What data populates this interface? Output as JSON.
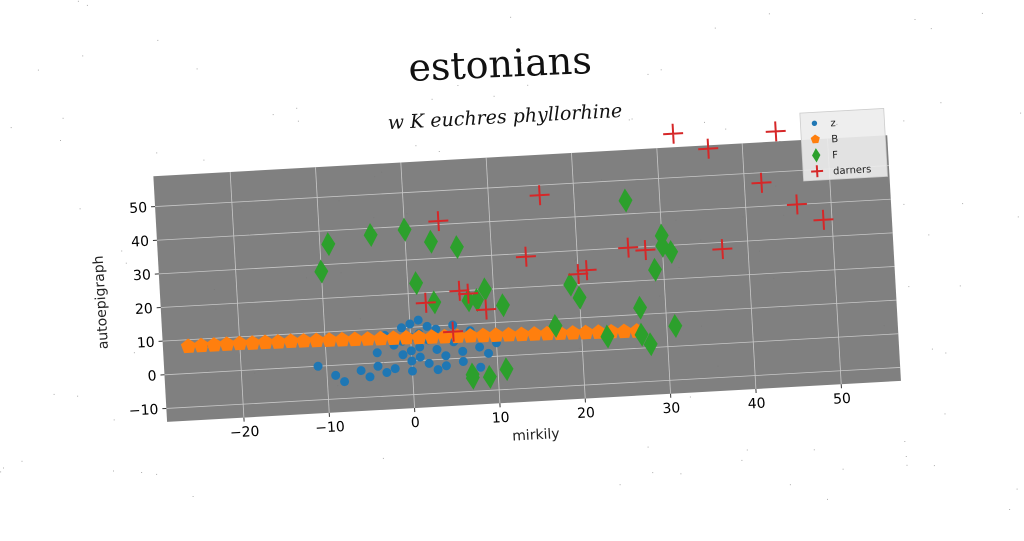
{
  "chart_data": {
    "type": "scatter",
    "title": "estonians",
    "subtitle": "w K euchres phyllorhine",
    "xlabel": "mirkily",
    "ylabel": "autoepigraph",
    "xlim": [
      -29,
      57
    ],
    "ylim": [
      -14,
      59
    ],
    "xticks": [
      -20,
      -10,
      0,
      10,
      20,
      30,
      40,
      50
    ],
    "yticks": [
      -10,
      0,
      10,
      20,
      30,
      40,
      50
    ],
    "grid": true,
    "legend_position": "top-right",
    "background": "#808080",
    "series": [
      {
        "name": "z",
        "color": "#1f77b4",
        "marker": "circle",
        "points": [
          [
            -11,
            0
          ],
          [
            -9,
            -3
          ],
          [
            -8,
            -5
          ],
          [
            -6,
            -2
          ],
          [
            -5,
            -4
          ],
          [
            -4,
            3
          ],
          [
            -4,
            -1
          ],
          [
            -3,
            -3
          ],
          [
            -3,
            8
          ],
          [
            -2,
            5
          ],
          [
            -2,
            -2
          ],
          [
            -1,
            10
          ],
          [
            -1,
            6
          ],
          [
            -1,
            2
          ],
          [
            0,
            11
          ],
          [
            0,
            7
          ],
          [
            0,
            3
          ],
          [
            0,
            0
          ],
          [
            0,
            -3
          ],
          [
            1,
            12
          ],
          [
            1,
            8
          ],
          [
            1,
            4
          ],
          [
            1,
            1
          ],
          [
            2,
            6
          ],
          [
            2,
            -1
          ],
          [
            2,
            10
          ],
          [
            3,
            3
          ],
          [
            3,
            -3
          ],
          [
            3,
            9
          ],
          [
            4,
            1
          ],
          [
            4,
            -2
          ],
          [
            5,
            5
          ],
          [
            5,
            10
          ],
          [
            6,
            2
          ],
          [
            6,
            -1
          ],
          [
            7,
            6
          ],
          [
            7,
            8
          ],
          [
            8,
            3
          ],
          [
            8,
            -3
          ],
          [
            9,
            1
          ],
          [
            10,
            4
          ]
        ]
      },
      {
        "name": "B",
        "color": "#ff7f0e",
        "marker": "pentagon",
        "points": [
          [
            -26,
            8
          ],
          [
            -24.5,
            8
          ],
          [
            -23,
            8
          ],
          [
            -21.5,
            8
          ],
          [
            -20,
            8
          ],
          [
            -18.5,
            7.9
          ],
          [
            -17,
            7.9
          ],
          [
            -15.5,
            7.8
          ],
          [
            -14,
            7.8
          ],
          [
            -12.5,
            7.7
          ],
          [
            -11,
            7.6
          ],
          [
            -9.5,
            7.5
          ],
          [
            -8,
            7.4
          ],
          [
            -6.5,
            7.3
          ],
          [
            -5,
            7.2
          ],
          [
            -3.5,
            7.1
          ],
          [
            -2,
            7
          ],
          [
            -0.5,
            6.9
          ],
          [
            1,
            6.8
          ],
          [
            2.5,
            6.7
          ],
          [
            4,
            6.6
          ],
          [
            5.5,
            6.5
          ],
          [
            7,
            6.4
          ],
          [
            8.5,
            6.3
          ],
          [
            10,
            6.2
          ],
          [
            11.5,
            6.1
          ],
          [
            13,
            6
          ],
          [
            14.5,
            5.9
          ],
          [
            16,
            5.8
          ],
          [
            17.5,
            5.7
          ],
          [
            19,
            5.6
          ],
          [
            20.5,
            5.5
          ],
          [
            22,
            5.4
          ],
          [
            23.5,
            5.3
          ],
          [
            25,
            5.2
          ],
          [
            26.5,
            5.1
          ]
        ]
      },
      {
        "name": "F",
        "color": "#2ca02c",
        "marker": "thin_diamond",
        "points": [
          [
            -10,
            28
          ],
          [
            -9,
            36
          ],
          [
            -4,
            38
          ],
          [
            0,
            39
          ],
          [
            1,
            23
          ],
          [
            3,
            35
          ],
          [
            3,
            17
          ],
          [
            6,
            33
          ],
          [
            7,
            -5
          ],
          [
            7,
            -6
          ],
          [
            7,
            17
          ],
          [
            8,
            17
          ],
          [
            9,
            20
          ],
          [
            9,
            -6
          ],
          [
            11,
            15
          ],
          [
            11,
            -4
          ],
          [
            17,
            8
          ],
          [
            19,
            20
          ],
          [
            20,
            16
          ],
          [
            23,
            4
          ],
          [
            26,
            44
          ],
          [
            27,
            12
          ],
          [
            27,
            4
          ],
          [
            28,
            1
          ],
          [
            29,
            23
          ],
          [
            30,
            33
          ],
          [
            30,
            30
          ],
          [
            31,
            28
          ],
          [
            31,
            6
          ]
        ]
      },
      {
        "name": "darners",
        "color": "#d62728",
        "marker": "plus",
        "points": [
          [
            2,
            17
          ],
          [
            4,
            41
          ],
          [
            5,
            8
          ],
          [
            6,
            20
          ],
          [
            7,
            19
          ],
          [
            9,
            14
          ],
          [
            14,
            29
          ],
          [
            16,
            47
          ],
          [
            20,
            23
          ],
          [
            21,
            24
          ],
          [
            26,
            30
          ],
          [
            28,
            29
          ],
          [
            32,
            63
          ],
          [
            36,
            58
          ],
          [
            37,
            28
          ],
          [
            42,
            47
          ],
          [
            44,
            62
          ],
          [
            46,
            40
          ],
          [
            49,
            35
          ]
        ]
      }
    ]
  }
}
